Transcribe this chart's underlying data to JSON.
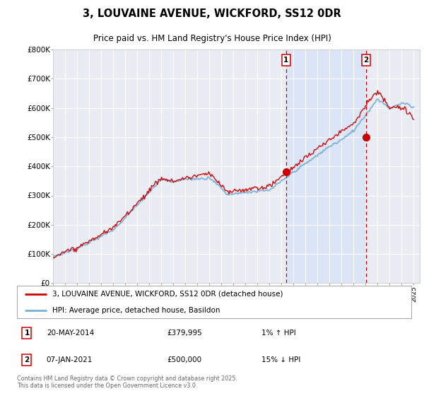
{
  "title": "3, LOUVAINE AVENUE, WICKFORD, SS12 0DR",
  "subtitle": "Price paid vs. HM Land Registry's House Price Index (HPI)",
  "ylim": [
    0,
    800000
  ],
  "xlim_year_start": 1995,
  "xlim_year_end": 2025.5,
  "sale1_year": 2014.38,
  "sale1_price": 379995,
  "sale2_year": 2021.02,
  "sale2_price": 500000,
  "legend_line1": "3, LOUVAINE AVENUE, WICKFORD, SS12 0DR (detached house)",
  "legend_line2": "HPI: Average price, detached house, Basildon",
  "annotation1_date": "20-MAY-2014",
  "annotation1_price": "£379,995",
  "annotation1_hpi": "1% ↑ HPI",
  "annotation2_date": "07-JAN-2021",
  "annotation2_price": "£500,000",
  "annotation2_hpi": "15% ↓ HPI",
  "footer": "Contains HM Land Registry data © Crown copyright and database right 2025.\nThis data is licensed under the Open Government Licence v3.0.",
  "line_color_red": "#cc0000",
  "line_color_blue": "#7aafd4",
  "bg_plot": "#eaecf4",
  "bg_highlight": "#dce5f5",
  "grid_color": "#ffffff",
  "dashed_color": "#cc0000"
}
